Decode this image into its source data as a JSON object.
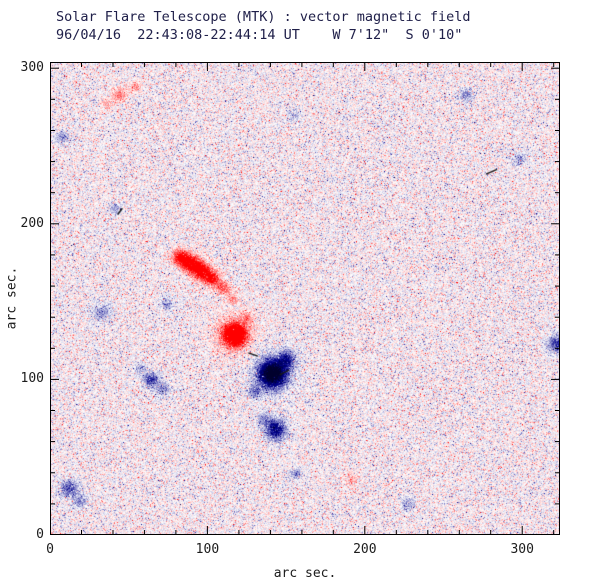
{
  "chart_data": {
    "type": "heatmap",
    "title": "Solar Flare Telescope (MTK) : vector magnetic field",
    "subtitle": "96/04/16  22:43:08-22:44:14 UT    W 7'12\"  S 0'10\"",
    "xlabel": "arc sec.",
    "ylabel": "arc sec.",
    "xlim": [
      0,
      324
    ],
    "ylim": [
      0,
      304
    ],
    "xticks": [
      0,
      100,
      200,
      300
    ],
    "yticks": [
      0,
      100,
      200,
      300
    ],
    "minor_tick_interval": 20,
    "grid": false,
    "legend": "none",
    "colormap": {
      "positive": "#ff0000",
      "negative": "#00008b",
      "background": "#ffffff",
      "frame": "#000000"
    },
    "noise": {
      "seed": 19960416,
      "base_amplitude": 0.2,
      "speckle_probability": 0.3,
      "speckle_amplitude": 0.5,
      "spike_probability": 0.012,
      "spike_amplitude": 1.1
    },
    "features": [
      {
        "x": 82,
        "y": 179,
        "sigma": 3.5,
        "amp": 1.0
      },
      {
        "x": 89,
        "y": 175,
        "sigma": 4.0,
        "amp": 1.3
      },
      {
        "x": 96,
        "y": 170,
        "sigma": 4.0,
        "amp": 1.25
      },
      {
        "x": 103,
        "y": 165,
        "sigma": 3.5,
        "amp": 1.0
      },
      {
        "x": 110,
        "y": 159,
        "sigma": 3.0,
        "amp": 0.7
      },
      {
        "x": 116,
        "y": 152,
        "sigma": 2.5,
        "amp": 0.45
      },
      {
        "x": 117,
        "y": 129,
        "sigma": 5.0,
        "amp": 1.75
      },
      {
        "x": 117,
        "y": 129,
        "sigma": 10.0,
        "amp": 0.3
      },
      {
        "x": 125,
        "y": 140,
        "sigma": 2.5,
        "amp": 0.4
      },
      {
        "x": 141,
        "y": 104,
        "sigma": 5.5,
        "amp": -2.1
      },
      {
        "x": 141,
        "y": 104,
        "sigma": 10.0,
        "amp": -0.3
      },
      {
        "x": 150,
        "y": 113,
        "sigma": 4.0,
        "amp": -0.8
      },
      {
        "x": 130,
        "y": 92,
        "sigma": 3.0,
        "amp": -0.5
      },
      {
        "x": 143,
        "y": 68,
        "sigma": 4.5,
        "amp": -1.15
      },
      {
        "x": 136,
        "y": 75,
        "sigma": 3.0,
        "amp": -0.5
      },
      {
        "x": 64,
        "y": 100,
        "sigma": 3.5,
        "amp": -0.8
      },
      {
        "x": 72,
        "y": 94,
        "sigma": 3.0,
        "amp": -0.5
      },
      {
        "x": 57,
        "y": 107,
        "sigma": 2.5,
        "amp": -0.4
      },
      {
        "x": 74,
        "y": 149,
        "sigma": 3.0,
        "amp": -0.4
      },
      {
        "x": 33,
        "y": 143,
        "sigma": 4.0,
        "amp": -0.45
      },
      {
        "x": 12,
        "y": 30,
        "sigma": 4.0,
        "amp": -0.7
      },
      {
        "x": 19,
        "y": 22,
        "sigma": 3.0,
        "amp": -0.5
      },
      {
        "x": 44,
        "y": 283,
        "sigma": 3.0,
        "amp": 0.55
      },
      {
        "x": 54,
        "y": 288,
        "sigma": 2.5,
        "amp": 0.45
      },
      {
        "x": 36,
        "y": 277,
        "sigma": 2.5,
        "amp": 0.4
      },
      {
        "x": 7,
        "y": 256,
        "sigma": 3.0,
        "amp": -0.4
      },
      {
        "x": 41,
        "y": 210,
        "sigma": 2.5,
        "amp": -0.4
      },
      {
        "x": 322,
        "y": 123,
        "sigma": 4.0,
        "amp": -0.85
      },
      {
        "x": 264,
        "y": 283,
        "sigma": 3.0,
        "amp": -0.45
      },
      {
        "x": 298,
        "y": 242,
        "sigma": 3.0,
        "amp": -0.4
      },
      {
        "x": 156,
        "y": 40,
        "sigma": 2.5,
        "amp": -0.45
      },
      {
        "x": 191,
        "y": 36,
        "sigma": 3.0,
        "amp": 0.35
      },
      {
        "x": 227,
        "y": 20,
        "sigma": 3.0,
        "amp": -0.4
      },
      {
        "x": 155,
        "y": 270,
        "sigma": 2.5,
        "amp": -0.35
      }
    ],
    "marks": [
      {
        "x1": 277,
        "y1": 232,
        "x2": 284,
        "y2": 235
      },
      {
        "x1": 43,
        "y1": 206,
        "x2": 46,
        "y2": 210
      },
      {
        "x1": 126,
        "y1": 117,
        "x2": 132,
        "y2": 115
      },
      {
        "x1": 146,
        "y1": 103,
        "x2": 152,
        "y2": 106
      }
    ]
  }
}
